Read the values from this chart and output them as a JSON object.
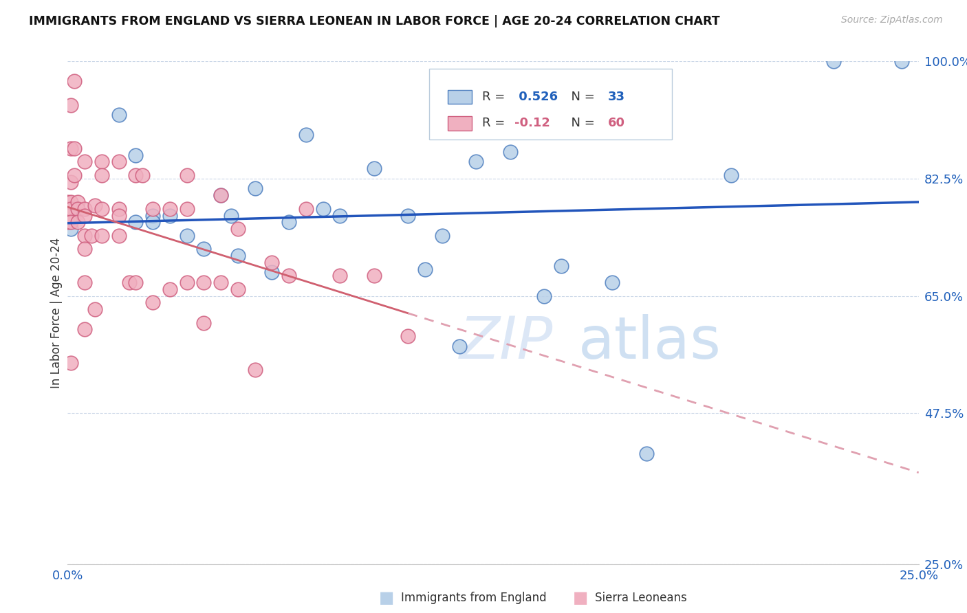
{
  "title": "IMMIGRANTS FROM ENGLAND VS SIERRA LEONEAN IN LABOR FORCE | AGE 20-24 CORRELATION CHART",
  "source": "Source: ZipAtlas.com",
  "ylabel": "In Labor Force | Age 20-24",
  "r_england": 0.526,
  "n_england": 33,
  "r_sierra": -0.12,
  "n_sierra": 60,
  "xmin": 0.0,
  "xmax": 0.25,
  "ymin": 0.25,
  "ymax": 1.0,
  "yticks": [
    0.25,
    0.475,
    0.65,
    0.825,
    1.0
  ],
  "ytick_labels": [
    "25.0%",
    "47.5%",
    "65.0%",
    "82.5%",
    "100.0%"
  ],
  "xticks": [
    0.0,
    0.05,
    0.1,
    0.15,
    0.2,
    0.25
  ],
  "xtick_labels": [
    "0.0%",
    "",
    "",
    "",
    "",
    "25.0%"
  ],
  "color_england_fill": "#b8d0e8",
  "color_england_edge": "#5080c0",
  "color_sierra_fill": "#f0b0c0",
  "color_sierra_edge": "#d06080",
  "color_england_line": "#2255bb",
  "color_sierra_solid": "#d06070",
  "color_sierra_dashed": "#e0a0b0",
  "watermark_zip": "ZIP",
  "watermark_atlas": "atlas",
  "england_x": [
    0.001,
    0.001,
    0.015,
    0.02,
    0.02,
    0.025,
    0.025,
    0.03,
    0.035,
    0.04,
    0.045,
    0.048,
    0.05,
    0.055,
    0.06,
    0.065,
    0.07,
    0.075,
    0.08,
    0.09,
    0.1,
    0.105,
    0.11,
    0.115,
    0.12,
    0.13,
    0.14,
    0.145,
    0.16,
    0.17,
    0.195,
    0.225,
    0.245
  ],
  "england_y": [
    0.77,
    0.75,
    0.92,
    0.86,
    0.76,
    0.77,
    0.76,
    0.77,
    0.74,
    0.72,
    0.8,
    0.77,
    0.71,
    0.81,
    0.685,
    0.76,
    0.89,
    0.78,
    0.77,
    0.84,
    0.77,
    0.69,
    0.74,
    0.575,
    0.85,
    0.865,
    0.65,
    0.695,
    0.67,
    0.415,
    0.83,
    1.0,
    1.0
  ],
  "sierra_x": [
    0.0,
    0.0,
    0.0,
    0.0,
    0.0,
    0.001,
    0.001,
    0.001,
    0.001,
    0.001,
    0.001,
    0.001,
    0.002,
    0.002,
    0.002,
    0.003,
    0.003,
    0.003,
    0.005,
    0.005,
    0.005,
    0.005,
    0.005,
    0.005,
    0.005,
    0.007,
    0.008,
    0.008,
    0.01,
    0.01,
    0.01,
    0.01,
    0.015,
    0.015,
    0.015,
    0.015,
    0.018,
    0.02,
    0.02,
    0.022,
    0.025,
    0.025,
    0.03,
    0.03,
    0.035,
    0.035,
    0.035,
    0.04,
    0.04,
    0.045,
    0.045,
    0.05,
    0.05,
    0.055,
    0.06,
    0.065,
    0.07,
    0.08,
    0.09,
    0.1
  ],
  "sierra_y": [
    0.79,
    0.78,
    0.77,
    0.77,
    0.76,
    0.935,
    0.87,
    0.82,
    0.79,
    0.78,
    0.76,
    0.55,
    0.97,
    0.87,
    0.83,
    0.79,
    0.78,
    0.76,
    0.85,
    0.78,
    0.77,
    0.74,
    0.72,
    0.67,
    0.6,
    0.74,
    0.785,
    0.63,
    0.85,
    0.83,
    0.78,
    0.74,
    0.85,
    0.78,
    0.77,
    0.74,
    0.67,
    0.83,
    0.67,
    0.83,
    0.78,
    0.64,
    0.78,
    0.66,
    0.83,
    0.78,
    0.67,
    0.67,
    0.61,
    0.8,
    0.67,
    0.75,
    0.66,
    0.54,
    0.7,
    0.68,
    0.78,
    0.68,
    0.68,
    0.59
  ]
}
